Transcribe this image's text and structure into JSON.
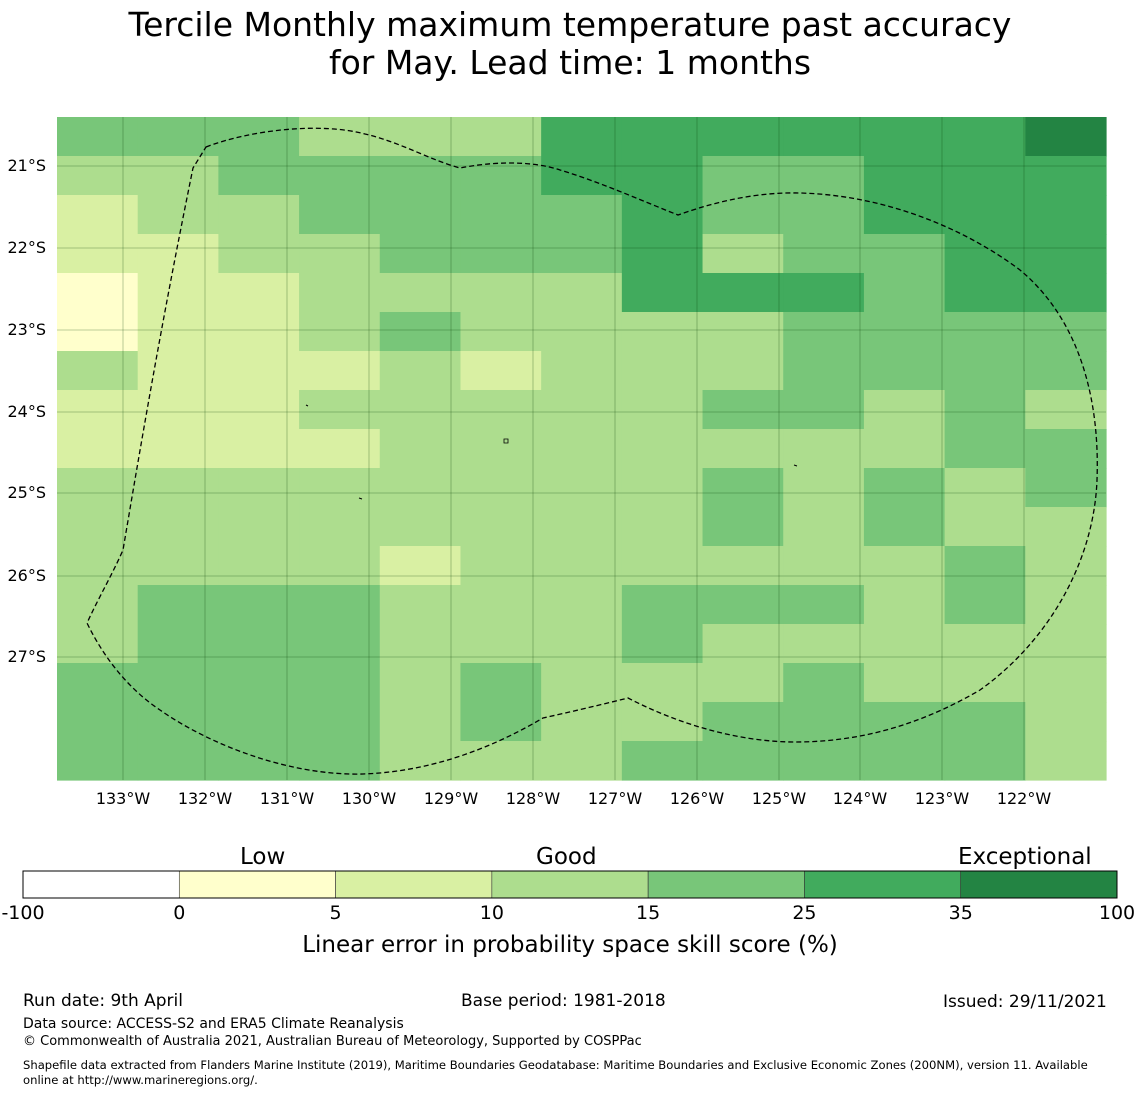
{
  "title": {
    "line1": "Tercile Monthly maximum temperature past accuracy",
    "line2": "for May. Lead time: 1 months"
  },
  "map": {
    "latitude_labels": [
      "21°S",
      "22°S",
      "23°S",
      "24°S",
      "25°S",
      "26°S",
      "27°S"
    ],
    "longitude_labels": [
      "133°W",
      "132°W",
      "131°W",
      "130°W",
      "129°W",
      "128°W",
      "127°W",
      "126°W",
      "125°W",
      "124°W",
      "123°W",
      "122°W"
    ],
    "palette": [
      "#ffffff",
      "#ffffcc",
      "#d9f0a3",
      "#addd8e",
      "#78c679",
      "#41ab5d",
      "#238443"
    ],
    "skill_grid": [
      "4443335555556",
      "3344445544555",
      "2334444544555",
      "2233444534455",
      "1223333555455",
      "1223433334444",
      "3222323334444",
      "2223333344343",
      "2222333333344",
      "3333333343434",
      "3333333343433",
      "3333233333343",
      "3444333444343",
      "3444333433333",
      "4444343334333",
      "4444343344443",
      "4444333444443"
    ],
    "grid_cell_note": "0=-100..0, 1=0..5, 2=5..10, 3=10..15, 4=15..25, 5=25..35, 6=35..100"
  },
  "colorbar": {
    "categories": [
      "Low",
      "Good",
      "Exceptional"
    ],
    "ticks": [
      "-100",
      "0",
      "5",
      "10",
      "15",
      "25",
      "35",
      "100"
    ],
    "colors": [
      "#ffffff",
      "#ffffcc",
      "#d9f0a3",
      "#addd8e",
      "#78c679",
      "#41ab5d",
      "#238443"
    ],
    "label": "Linear error in probability space skill score (%)"
  },
  "footer": {
    "run_date": "Run date: 9th April",
    "base_period": "Base period: 1981-2018",
    "issued": "Issued: 29/11/2021",
    "data_source": "Data source: ACCESS-S2 and ERA5 Climate Reanalysis",
    "copyright": "© Commonwealth of Australia 2021, Australian Bureau of Meteorology, Supported by COSPPac",
    "shapefile_line1": "Shapefile data extracted from Flanders Marine Institute (2019), Maritime Boundaries Geodatabase: Maritime Boundaries and Exclusive Economic Zones (200NM), version 11. Available",
    "shapefile_line2": "online at http://www.marineregions.org/."
  }
}
